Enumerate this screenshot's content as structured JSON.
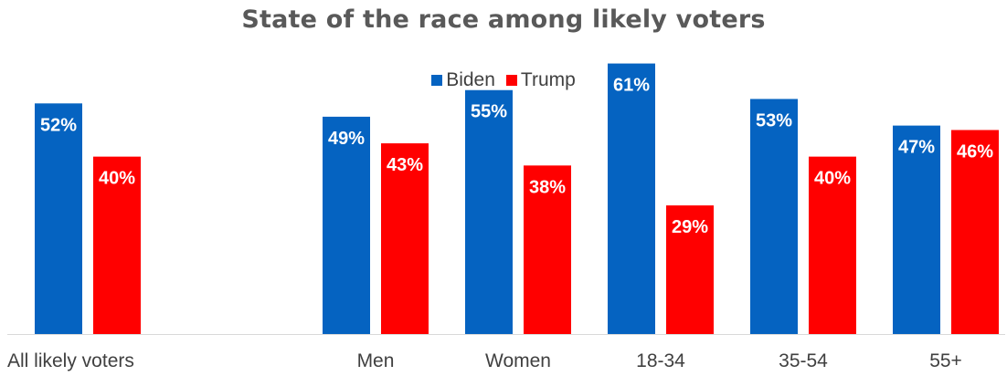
{
  "chart_data": {
    "type": "bar",
    "title": "State of the race among likely voters",
    "xlabel": "",
    "ylabel": "",
    "ylim": [
      0,
      64
    ],
    "grid": false,
    "legend_position": "top-center",
    "categories": [
      "All likely voters",
      "Men",
      "Women",
      "18-34",
      "35-54",
      "55+"
    ],
    "series": [
      {
        "name": "Biden",
        "color": "#0563C1",
        "values": [
          52,
          49,
          55,
          61,
          53,
          47
        ],
        "labels": [
          "52%",
          "49%",
          "55%",
          "61%",
          "53%",
          "47%"
        ]
      },
      {
        "name": "Trump",
        "color": "#FF0000",
        "values": [
          40,
          43,
          38,
          29,
          40,
          46
        ],
        "labels": [
          "40%",
          "43%",
          "38%",
          "29%",
          "40%",
          "46%"
        ]
      }
    ]
  }
}
